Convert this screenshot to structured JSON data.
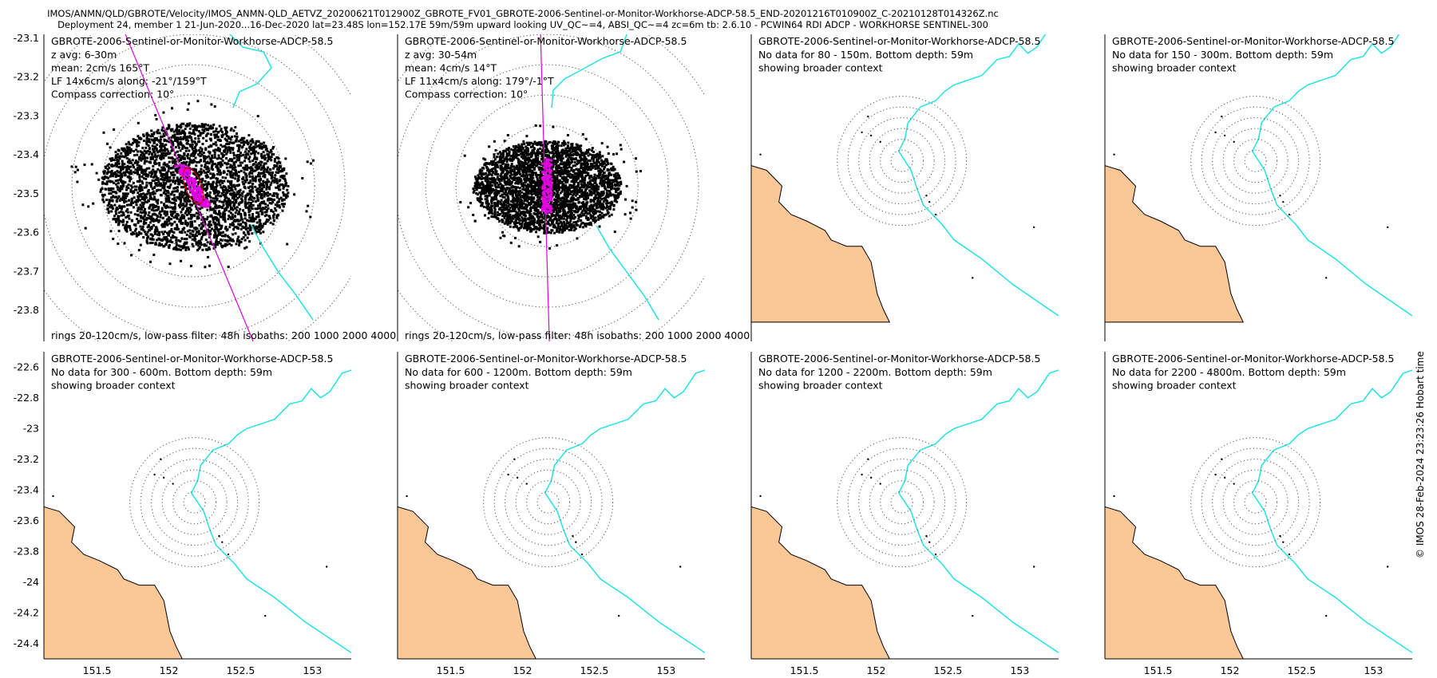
{
  "header": {
    "line1": "IMOS/ANMN/QLD/GBROTE/Velocity/IMOS_ANMN-QLD_AETVZ_20200621T012900Z_GBROTE_FV01_GBROTE-2006-Sentinel-or-Monitor-Workhorse-ADCP-58.5_END-20201216T010900Z_C-20210128T014326Z.nc",
    "line2": "Deployment 24, member 1 21-Jun-2020...16-Dec-2020 lat=23.48S lon=152.17E 59m/59m upward looking UV_QC~=4, ABSI_QC~=4 zc=6m tb: 2.6.10 - PCWIN64 RDI ADCP - WORKHORSE SENTINEL-300"
  },
  "credit": "© IMOS 28-Feb-2024 23:23:26 Hobart time",
  "colors": {
    "land": "#f9c896",
    "isobath": "#22e2e2",
    "track": "#e000e0",
    "scatter": "#000000",
    "rings": "#555555"
  },
  "chart_data": {
    "type": "scatter",
    "x_ticks": [
      151.5,
      152,
      152.5,
      153
    ],
    "top_row": {
      "ylim": [
        -23.88,
        -23.09
      ],
      "y_ticks": [
        -23.1,
        -23.2,
        -23.3,
        -23.4,
        -23.5,
        -23.6,
        -23.7,
        -23.8
      ],
      "y_tick_labels": [
        "-23.1",
        "-23.2",
        "-23.3",
        "-23.4",
        "-23.5",
        "-23.6",
        "-23.7",
        "-23.8"
      ]
    },
    "bottom_row": {
      "ylim": [
        -24.5,
        -22.5
      ],
      "y_ticks": [
        -22.6,
        -22.8,
        -23,
        -23.2,
        -23.4,
        -23.6,
        -23.8,
        -24,
        -24.2,
        -24.4
      ],
      "y_tick_labels": [
        "-22.6",
        "-22.8",
        "-23",
        "-23.2",
        "-23.4",
        "-23.6",
        "-23.8",
        "-24",
        "-24.2",
        "-24.4"
      ]
    },
    "panels": [
      {
        "title": "GBROTE-2006-Sentinel-or-Monitor-Workhorse-ADCP-58.5",
        "lines": [
          "z avg: 6-30m",
          "mean: 2cm/s 165°T",
          "LF 14x6cm/s along: -21°/159°T",
          "Compass correction: 10°"
        ],
        "footer": "rings 20-120cm/s, low-pass filter: 48h isobaths: 200 1000 2000 4000",
        "has_data": true
      },
      {
        "title": "GBROTE-2006-Sentinel-or-Monitor-Workhorse-ADCP-58.5",
        "lines": [
          "z avg: 30-54m",
          "mean: 4cm/s 14°T",
          "LF 11x4cm/s along: 179°/-1°T",
          "Compass correction: 10°"
        ],
        "footer": "rings 20-120cm/s, low-pass filter: 48h isobaths: 200 1000 2000 4000",
        "has_data": true
      },
      {
        "title": "GBROTE-2006-Sentinel-or-Monitor-Workhorse-ADCP-58.5",
        "lines": [
          "No data for 80 - 150m. Bottom depth: 59m",
          "showing broader context"
        ],
        "has_data": false
      },
      {
        "title": "GBROTE-2006-Sentinel-or-Monitor-Workhorse-ADCP-58.5",
        "lines": [
          "No data for 150 - 300m. Bottom depth: 59m",
          "showing broader context"
        ],
        "has_data": false
      },
      {
        "title": "GBROTE-2006-Sentinel-or-Monitor-Workhorse-ADCP-58.5",
        "lines": [
          "No data for 300 - 600m. Bottom depth: 59m",
          "showing broader context"
        ],
        "has_data": false
      },
      {
        "title": "GBROTE-2006-Sentinel-or-Monitor-Workhorse-ADCP-58.5",
        "lines": [
          "No data for 600 - 1200m. Bottom depth: 59m",
          "showing broader context"
        ],
        "has_data": false
      },
      {
        "title": "GBROTE-2006-Sentinel-or-Monitor-Workhorse-ADCP-58.5",
        "lines": [
          "No data for 1200 - 2200m. Bottom depth: 59m",
          "showing broader context"
        ],
        "has_data": false
      },
      {
        "title": "GBROTE-2006-Sentinel-or-Monitor-Workhorse-ADCP-58.5",
        "lines": [
          "No data for 2200 - 4800m. Bottom depth: 59m",
          "showing broader context"
        ],
        "has_data": false
      }
    ]
  }
}
